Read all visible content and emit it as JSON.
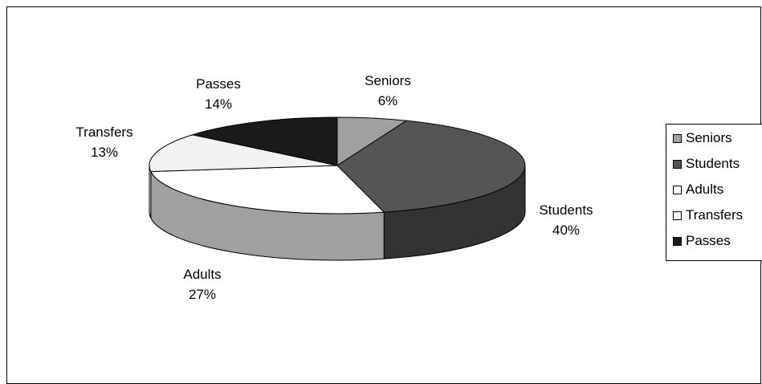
{
  "chart_data": {
    "type": "pie",
    "style": "3d",
    "slices": [
      {
        "label": "Seniors",
        "value": 6,
        "pct_label": "6%",
        "color": "#a0a0a0",
        "side_color": "#7d7d7d"
      },
      {
        "label": "Students",
        "value": 40,
        "pct_label": "40%",
        "color": "#555555",
        "side_color": "#333333"
      },
      {
        "label": "Adults",
        "value": 27,
        "pct_label": "27%",
        "color": "#ffffff",
        "side_color": "#a0a0a0"
      },
      {
        "label": "Transfers",
        "value": 13,
        "pct_label": "13%",
        "color": "#f2f2f2",
        "side_color": "#ffffff"
      },
      {
        "label": "Passes",
        "value": 14,
        "pct_label": "14%",
        "color": "#1a1a1a",
        "side_color": "#111111"
      }
    ],
    "legend": {
      "position": "right",
      "entries": [
        "Seniors",
        "Students",
        "Adults",
        "Transfers",
        "Passes"
      ]
    }
  }
}
